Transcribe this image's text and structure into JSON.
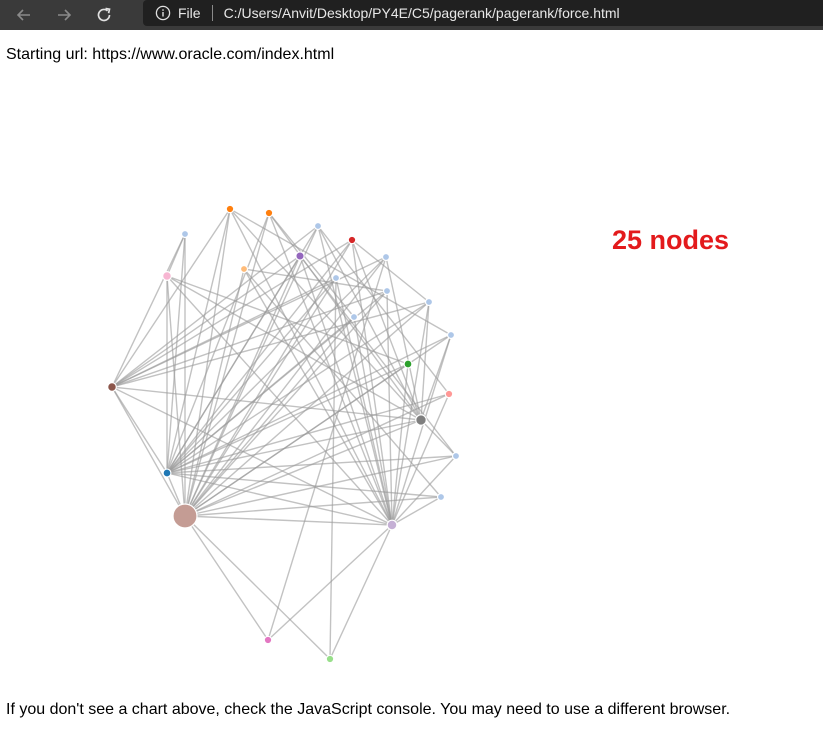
{
  "browser": {
    "file_label": "File",
    "address": "C:/Users/Anvit/Desktop/PY4E/C5/pagerank/pagerank/force.html"
  },
  "page": {
    "starting_url": "Starting url: https://www.oracle.com/index.html",
    "node_count_label": "25 nodes",
    "footer_text": "If you don't see a chart above, check the JavaScript console. You may need to use a different browser."
  },
  "graph": {
    "nodes": [
      {
        "id": 0,
        "color": "#c49c94",
        "weight": 3.0
      },
      {
        "id": 1,
        "color": "#1f77b4",
        "weight": 1.0
      },
      {
        "id": 2,
        "color": "#8c564b",
        "weight": 1.2
      },
      {
        "id": 3,
        "color": "#c5b0d5",
        "weight": 1.4
      },
      {
        "id": 4,
        "color": "#7f7f7f",
        "weight": 1.6
      },
      {
        "id": 5,
        "color": "#f7b6d2",
        "weight": 1.2
      },
      {
        "id": 6,
        "color": "#9467bd",
        "weight": 1.1
      },
      {
        "id": 7,
        "color": "#ff7f0e",
        "weight": 0.9
      },
      {
        "id": 8,
        "color": "#ff7f0e",
        "weight": 0.9
      },
      {
        "id": 9,
        "color": "#aec7e8",
        "weight": 0.8
      },
      {
        "id": 10,
        "color": "#aec7e8",
        "weight": 0.8
      },
      {
        "id": 11,
        "color": "#d62728",
        "weight": 0.9
      },
      {
        "id": 12,
        "color": "#ffbb78",
        "weight": 0.8
      },
      {
        "id": 13,
        "color": "#aec7e8",
        "weight": 0.8
      },
      {
        "id": 14,
        "color": "#aec7e8",
        "weight": 0.8
      },
      {
        "id": 15,
        "color": "#aec7e8",
        "weight": 0.8
      },
      {
        "id": 16,
        "color": "#aec7e8",
        "weight": 0.8
      },
      {
        "id": 17,
        "color": "#aec7e8",
        "weight": 0.8
      },
      {
        "id": 18,
        "color": "#aec7e8",
        "weight": 0.8
      },
      {
        "id": 19,
        "color": "#2ca02c",
        "weight": 1.0
      },
      {
        "id": 20,
        "color": "#ff9896",
        "weight": 0.9
      },
      {
        "id": 21,
        "color": "#aec7e8",
        "weight": 0.8
      },
      {
        "id": 22,
        "color": "#aec7e8",
        "weight": 0.8
      },
      {
        "id": 23,
        "color": "#e377c2",
        "weight": 0.9
      },
      {
        "id": 24,
        "color": "#98df8a",
        "weight": 0.9
      }
    ],
    "links": [
      [
        0,
        1
      ],
      [
        0,
        2
      ],
      [
        0,
        3
      ],
      [
        0,
        4
      ],
      [
        0,
        5
      ],
      [
        0,
        6
      ],
      [
        0,
        7
      ],
      [
        0,
        8
      ],
      [
        0,
        9
      ],
      [
        0,
        10
      ],
      [
        0,
        11
      ],
      [
        0,
        12
      ],
      [
        0,
        13
      ],
      [
        0,
        14
      ],
      [
        0,
        15
      ],
      [
        0,
        16
      ],
      [
        0,
        17
      ],
      [
        0,
        18
      ],
      [
        0,
        19
      ],
      [
        0,
        20
      ],
      [
        0,
        21
      ],
      [
        0,
        22
      ],
      [
        0,
        23
      ],
      [
        0,
        24
      ],
      [
        1,
        2
      ],
      [
        1,
        3
      ],
      [
        1,
        4
      ],
      [
        1,
        5
      ],
      [
        1,
        6
      ],
      [
        1,
        7
      ],
      [
        1,
        8
      ],
      [
        1,
        9
      ],
      [
        1,
        10
      ],
      [
        1,
        11
      ],
      [
        1,
        13
      ],
      [
        1,
        14
      ],
      [
        1,
        15
      ],
      [
        1,
        16
      ],
      [
        1,
        17
      ],
      [
        1,
        18
      ],
      [
        1,
        19
      ],
      [
        1,
        20
      ],
      [
        1,
        21
      ],
      [
        1,
        22
      ],
      [
        2,
        4
      ],
      [
        2,
        6
      ],
      [
        2,
        7
      ],
      [
        2,
        9
      ],
      [
        2,
        10
      ],
      [
        2,
        11
      ],
      [
        2,
        13
      ],
      [
        2,
        14
      ],
      [
        2,
        15
      ],
      [
        2,
        16
      ],
      [
        2,
        3
      ],
      [
        3,
        5
      ],
      [
        3,
        6
      ],
      [
        3,
        7
      ],
      [
        3,
        8
      ],
      [
        3,
        10
      ],
      [
        3,
        11
      ],
      [
        3,
        12
      ],
      [
        3,
        13
      ],
      [
        3,
        15
      ],
      [
        3,
        16
      ],
      [
        3,
        17
      ],
      [
        3,
        18
      ],
      [
        3,
        19
      ],
      [
        3,
        20
      ],
      [
        3,
        21
      ],
      [
        3,
        22
      ],
      [
        3,
        23
      ],
      [
        3,
        24
      ],
      [
        4,
        5
      ],
      [
        4,
        7
      ],
      [
        4,
        8
      ],
      [
        4,
        10
      ],
      [
        4,
        11
      ],
      [
        4,
        14
      ],
      [
        4,
        16
      ],
      [
        4,
        18
      ],
      [
        4,
        21
      ],
      [
        5,
        9
      ],
      [
        5,
        19
      ],
      [
        6,
        21
      ],
      [
        7,
        18
      ],
      [
        8,
        17
      ],
      [
        10,
        20
      ],
      [
        11,
        16
      ],
      [
        12,
        22
      ],
      [
        13,
        24
      ],
      [
        14,
        23
      ],
      [
        15,
        12
      ]
    ]
  }
}
